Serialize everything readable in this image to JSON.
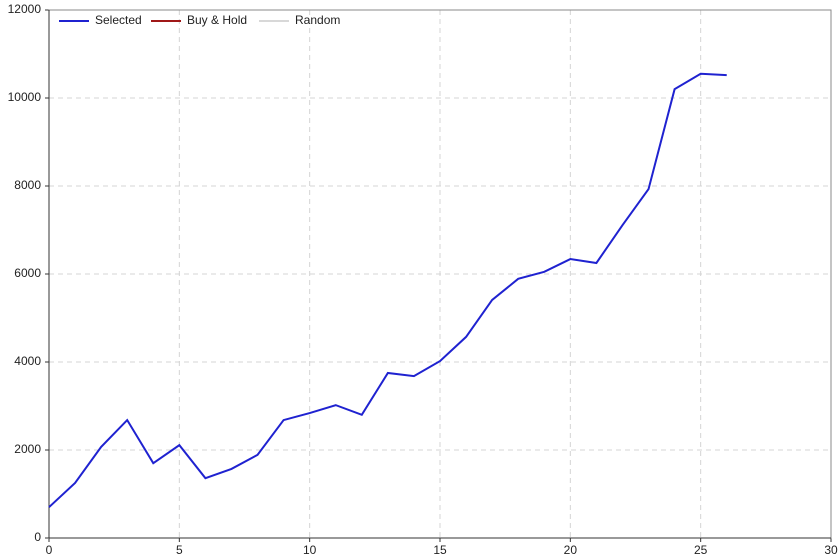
{
  "chart_data": {
    "type": "line",
    "x": [
      0,
      1,
      2,
      3,
      4,
      5,
      6,
      7,
      8,
      9,
      10,
      11,
      12,
      13,
      14,
      15,
      16,
      17,
      18,
      19,
      20,
      21,
      22,
      23,
      24,
      25,
      26
    ],
    "series": [
      {
        "name": "Selected",
        "color": "#1f22d0",
        "values": [
          700,
          1250,
          2070,
          2680,
          1700,
          2110,
          1360,
          1570,
          1890,
          2680,
          2840,
          3020,
          2800,
          3750,
          3680,
          4020,
          4570,
          5410,
          5890,
          6050,
          6340,
          6250,
          7110,
          7930,
          10200,
          10550,
          10520
        ]
      },
      {
        "name": "Buy & Hold",
        "color": "#a01818",
        "values": [
          null,
          null,
          null,
          null,
          null,
          null,
          null,
          null,
          null,
          null,
          null,
          null,
          null,
          null,
          null,
          null,
          null,
          null,
          null,
          null,
          null,
          null,
          null,
          null,
          null,
          null,
          null
        ]
      },
      {
        "name": "Random",
        "color": "#d8d8d8",
        "values": [
          null,
          null,
          null,
          null,
          null,
          null,
          null,
          null,
          null,
          null,
          null,
          null,
          null,
          null,
          null,
          null,
          null,
          null,
          null,
          null,
          null,
          null,
          null,
          null,
          null,
          null,
          null
        ]
      }
    ],
    "xlim": [
      0,
      30
    ],
    "xticks": [
      0,
      5,
      10,
      15,
      20,
      25,
      30
    ],
    "ylim": [
      0,
      12000
    ],
    "yticks": [
      0,
      2000,
      4000,
      6000,
      8000,
      10000,
      12000
    ],
    "grid": true,
    "legend": "top-left"
  }
}
